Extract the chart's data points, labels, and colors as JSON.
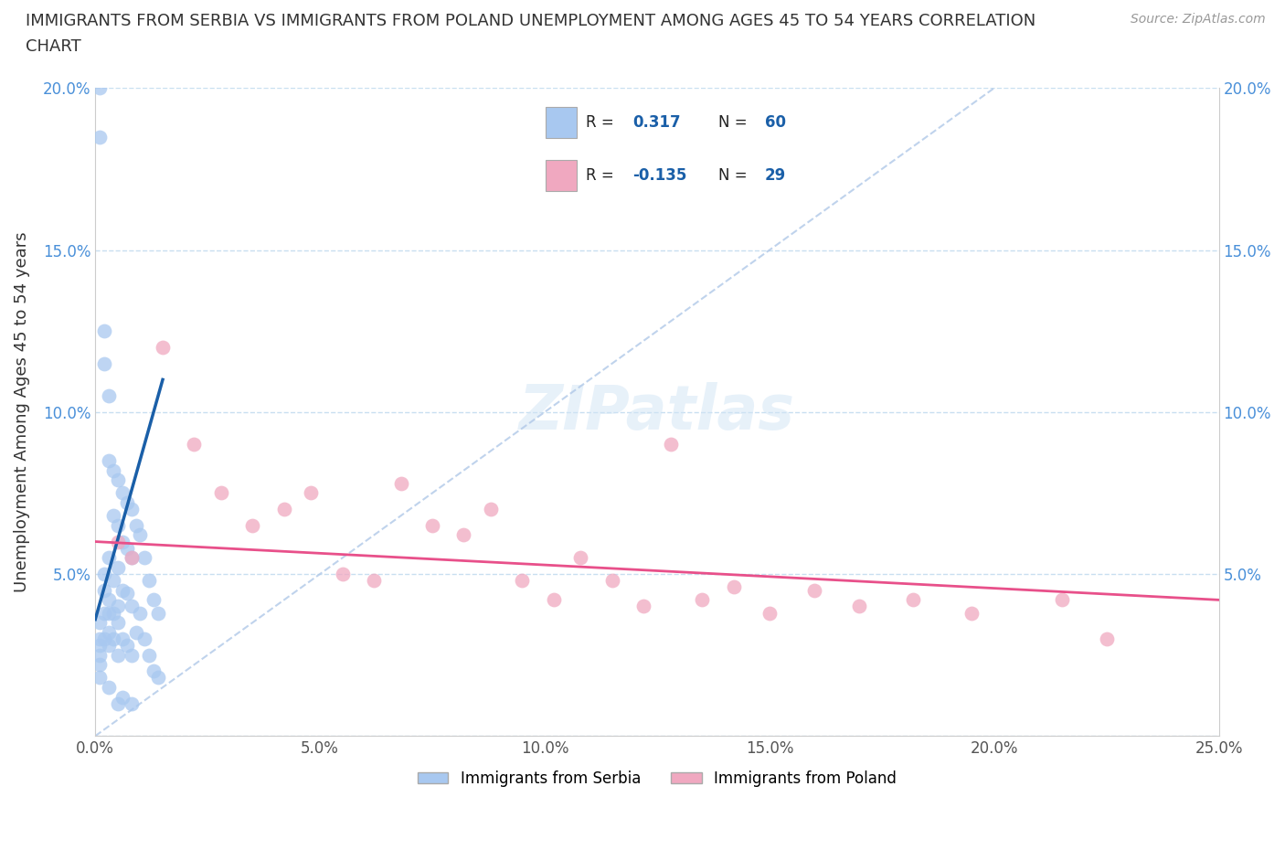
{
  "title_line1": "IMMIGRANTS FROM SERBIA VS IMMIGRANTS FROM POLAND UNEMPLOYMENT AMONG AGES 45 TO 54 YEARS CORRELATION",
  "title_line2": "CHART",
  "source": "Source: ZipAtlas.com",
  "ylabel": "Unemployment Among Ages 45 to 54 years",
  "xlim": [
    0.0,
    0.25
  ],
  "ylim": [
    0.0,
    0.2
  ],
  "xticks": [
    0.0,
    0.05,
    0.1,
    0.15,
    0.2,
    0.25
  ],
  "yticks": [
    0.0,
    0.05,
    0.1,
    0.15,
    0.2
  ],
  "xticklabels": [
    "0.0%",
    "5.0%",
    "10.0%",
    "15.0%",
    "20.0%",
    "25.0%"
  ],
  "yticklabels": [
    "",
    "5.0%",
    "10.0%",
    "15.0%",
    "20.0%"
  ],
  "right_yticklabels": [
    "",
    "5.0%",
    "10.0%",
    "15.0%",
    "20.0%"
  ],
  "legend_label1": "Immigrants from Serbia",
  "legend_label2": "Immigrants from Poland",
  "R1": 0.317,
  "N1": 60,
  "R2": -0.135,
  "N2": 29,
  "color_serbia": "#a8c8f0",
  "color_poland": "#f0a8c0",
  "trendline_serbia": "#1a5fa8",
  "trendline_poland": "#e8508a",
  "refline_color": "#b0c8e8",
  "background_color": "#ffffff",
  "serbia_x": [
    0.001,
    0.001,
    0.001,
    0.001,
    0.001,
    0.001,
    0.001,
    0.001,
    0.002,
    0.002,
    0.002,
    0.002,
    0.002,
    0.002,
    0.003,
    0.003,
    0.003,
    0.003,
    0.003,
    0.003,
    0.003,
    0.004,
    0.004,
    0.004,
    0.004,
    0.004,
    0.005,
    0.005,
    0.005,
    0.005,
    0.005,
    0.005,
    0.006,
    0.006,
    0.006,
    0.006,
    0.007,
    0.007,
    0.007,
    0.007,
    0.008,
    0.008,
    0.008,
    0.008,
    0.009,
    0.009,
    0.01,
    0.01,
    0.011,
    0.011,
    0.012,
    0.012,
    0.013,
    0.013,
    0.014,
    0.014,
    0.005,
    0.003,
    0.006,
    0.008
  ],
  "serbia_y": [
    0.2,
    0.185,
    0.035,
    0.03,
    0.028,
    0.025,
    0.022,
    0.018,
    0.125,
    0.115,
    0.05,
    0.045,
    0.038,
    0.03,
    0.105,
    0.085,
    0.055,
    0.042,
    0.038,
    0.032,
    0.028,
    0.082,
    0.068,
    0.048,
    0.038,
    0.03,
    0.079,
    0.065,
    0.052,
    0.04,
    0.035,
    0.025,
    0.075,
    0.06,
    0.045,
    0.03,
    0.072,
    0.058,
    0.044,
    0.028,
    0.07,
    0.055,
    0.04,
    0.025,
    0.065,
    0.032,
    0.062,
    0.038,
    0.055,
    0.03,
    0.048,
    0.025,
    0.042,
    0.02,
    0.038,
    0.018,
    0.01,
    0.015,
    0.012,
    0.01
  ],
  "poland_x": [
    0.005,
    0.008,
    0.015,
    0.022,
    0.028,
    0.035,
    0.042,
    0.048,
    0.055,
    0.062,
    0.068,
    0.075,
    0.082,
    0.088,
    0.095,
    0.102,
    0.108,
    0.115,
    0.122,
    0.128,
    0.135,
    0.142,
    0.15,
    0.16,
    0.17,
    0.182,
    0.195,
    0.215,
    0.225
  ],
  "poland_y": [
    0.06,
    0.055,
    0.12,
    0.09,
    0.075,
    0.065,
    0.07,
    0.075,
    0.05,
    0.048,
    0.078,
    0.065,
    0.062,
    0.07,
    0.048,
    0.042,
    0.055,
    0.048,
    0.04,
    0.09,
    0.042,
    0.046,
    0.038,
    0.045,
    0.04,
    0.042,
    0.038,
    0.042,
    0.03
  ],
  "serbia_trendline_x": [
    0.0,
    0.015
  ],
  "serbia_trendline_y": [
    0.036,
    0.11
  ],
  "poland_trendline_x": [
    0.0,
    0.25
  ],
  "poland_trendline_y": [
    0.06,
    0.042
  ],
  "refline_x": [
    0.0,
    0.2
  ],
  "refline_y": [
    0.0,
    0.2
  ]
}
